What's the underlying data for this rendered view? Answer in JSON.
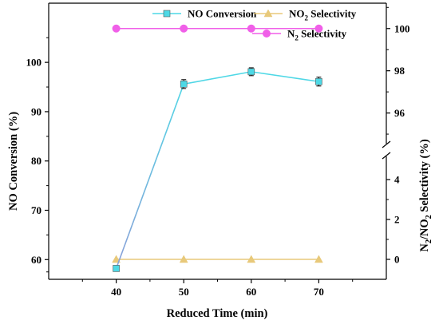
{
  "chart_data": {
    "type": "line",
    "xlabel": "Reduced Time (min)",
    "ylabel_left": "NO Conversion (%)",
    "ylabel_right": "N2/NO2 Selectivity (%)",
    "x": [
      40,
      50,
      60,
      70
    ],
    "x_ticks": [
      "40",
      "50",
      "60",
      "70"
    ],
    "xlim": [
      30,
      80
    ],
    "ylim_left": [
      56,
      112
    ],
    "y_left_ticks": [
      "60",
      "70",
      "80",
      "90",
      "100"
    ],
    "y_right_lower_range": [
      -1,
      5
    ],
    "y_right_lower_ticks": [
      "0",
      "2",
      "4"
    ],
    "y_right_upper_range": [
      94.7,
      101.2
    ],
    "y_right_upper_ticks": [
      "96",
      "98",
      "100"
    ],
    "axis_break": "right axis broken between 5 and 94.7",
    "series": [
      {
        "name": "NO Conversion",
        "axis": "left",
        "marker": "square",
        "color": "#4dd9e6",
        "values": [
          58.2,
          95.6,
          98.1,
          96.1
        ],
        "errors": [
          0.4,
          0.9,
          0.8,
          0.9
        ]
      },
      {
        "name": "NO2 Selectivity",
        "axis": "right",
        "marker": "triangle",
        "color": "#e8c97a",
        "values": [
          0,
          0,
          0,
          0
        ]
      },
      {
        "name": "N2 Selectivity",
        "axis": "right",
        "marker": "circle",
        "color": "#f05fe8",
        "values": [
          100,
          100,
          100,
          100
        ]
      }
    ],
    "legend_position": "top-right",
    "grid": false
  }
}
